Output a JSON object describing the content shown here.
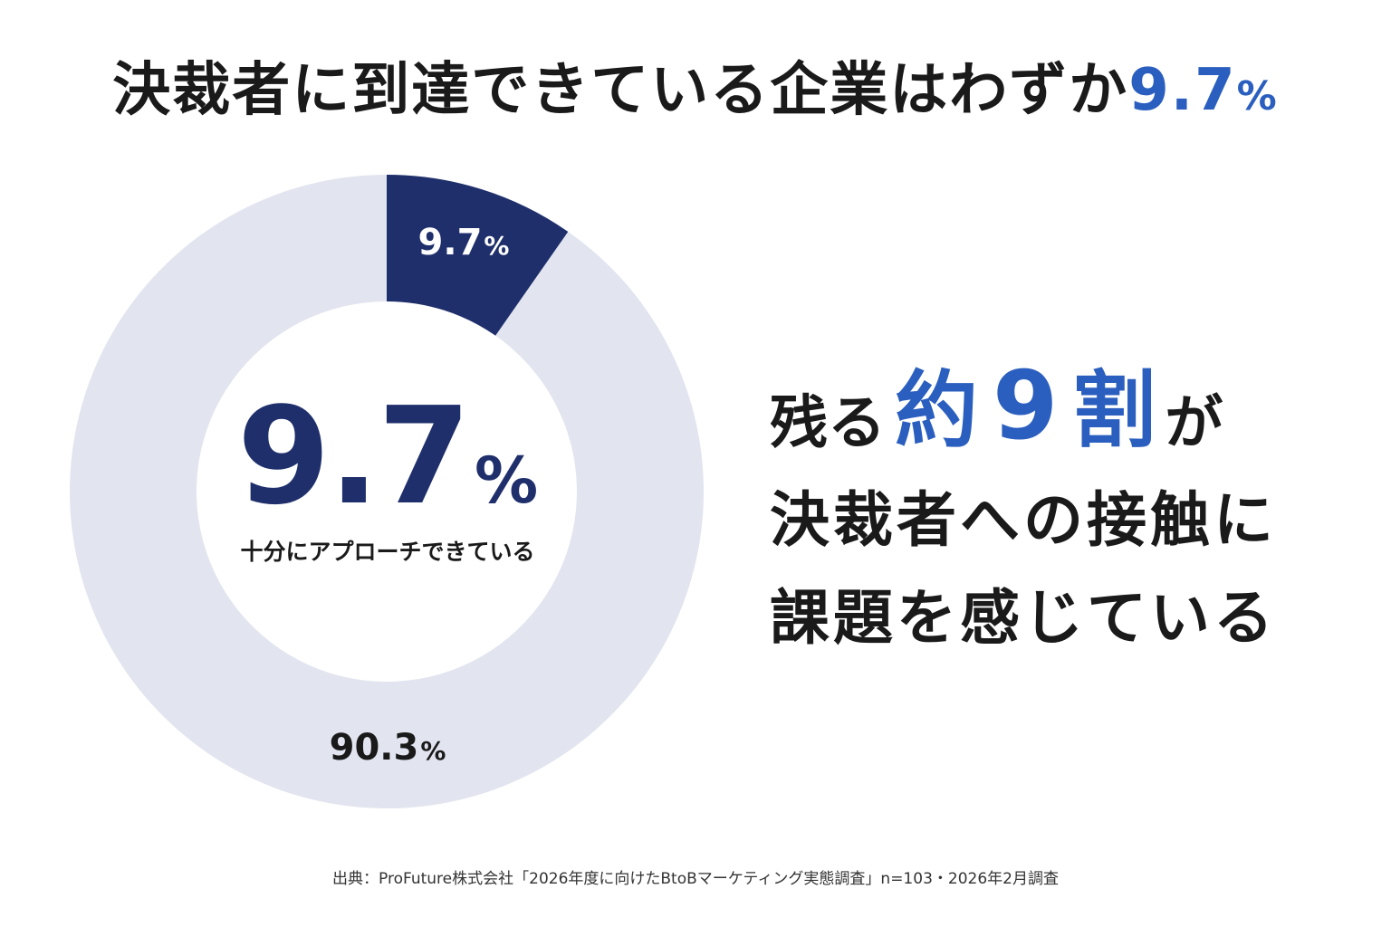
{
  "headline": {
    "prefix": "決裁者に到達できている企業はわずか",
    "number": "9.7",
    "unit": "%"
  },
  "colors": {
    "primary_slice": "#1f2f6b",
    "secondary_slice": "#e2e5ef",
    "accent_blue": "#2b5fbf",
    "text": "#1a1a1a"
  },
  "chart_data": {
    "type": "pie",
    "donut": true,
    "slices": [
      {
        "label_value": "9.7",
        "label_unit": "%",
        "value": 9.7,
        "color": "#1f2f6b"
      },
      {
        "label_value": "90.3",
        "label_unit": "%",
        "value": 90.3,
        "color": "#e2e5ef"
      }
    ],
    "center": {
      "value": "9.7",
      "unit": "%",
      "caption": "十分にアプローチできている"
    }
  },
  "message": {
    "line1_pre": "残る",
    "line1_accent1": "約",
    "line1_accent2": "9",
    "line1_accent3": "割",
    "line1_post": "が",
    "line2": "決裁者への接触に",
    "line3": "課題を感じている"
  },
  "source": "出典：ProFuture株式会社「2026年度に向けたBtoBマーケティング実態調査」n=103・2026年2月調査"
}
